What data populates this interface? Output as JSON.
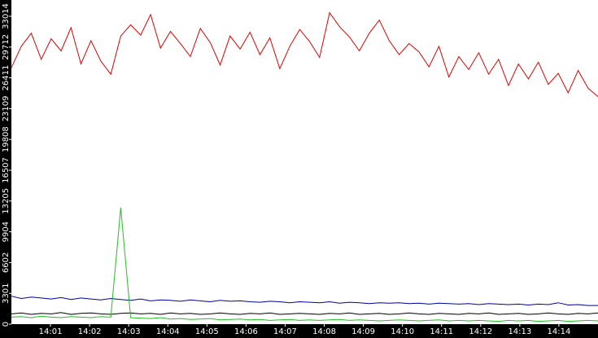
{
  "chart_data": {
    "type": "line",
    "xlim": [
      0,
      15
    ],
    "xticks": [
      {
        "value": 1,
        "label": "14:01"
      },
      {
        "value": 2,
        "label": "14:02"
      },
      {
        "value": 3,
        "label": "14:03"
      },
      {
        "value": 4,
        "label": "14:04"
      },
      {
        "value": 5,
        "label": "14:05"
      },
      {
        "value": 6,
        "label": "14:06"
      },
      {
        "value": 7,
        "label": "14:07"
      },
      {
        "value": 8,
        "label": "14:08"
      },
      {
        "value": 9,
        "label": "14:09"
      },
      {
        "value": 10,
        "label": "14:10"
      },
      {
        "value": 11,
        "label": "14:11"
      },
      {
        "value": 12,
        "label": "14:12"
      },
      {
        "value": 13,
        "label": "14:13"
      },
      {
        "value": 14,
        "label": "14:14"
      }
    ],
    "ylim": [
      0,
      34760
    ],
    "yticks": [
      0,
      3301,
      6602,
      9904,
      13205,
      16507,
      19808,
      23109,
      26411,
      29712,
      33014
    ],
    "series": [
      {
        "color": "#e00000",
        "values": [
          27500,
          29800,
          31200,
          28400,
          30600,
          29300,
          31800,
          27900,
          30400,
          28200,
          26800,
          30900,
          32100,
          31000,
          33200,
          29600,
          31400,
          30100,
          28700,
          31700,
          30200,
          27800,
          30900,
          29500,
          31300,
          28900,
          30700,
          27400,
          29800,
          31600,
          30300,
          28600,
          33400,
          31900,
          30800,
          29300,
          31200,
          32600,
          30400,
          28900,
          30100,
          29200,
          27600,
          29800,
          26500,
          28700,
          27300,
          29100,
          26800,
          28400,
          25600,
          27900,
          26300,
          28100,
          25700,
          26900,
          24800,
          27200,
          25300,
          24400
        ]
      },
      {
        "color": "#0000a0",
        "values": [
          3000,
          2750,
          2900,
          2800,
          2700,
          2850,
          2650,
          2800,
          2700,
          2600,
          2750,
          2650,
          2550,
          2700,
          2500,
          2600,
          2550,
          2450,
          2600,
          2500,
          2400,
          2550,
          2450,
          2500,
          2400,
          2350,
          2450,
          2400,
          2300,
          2400,
          2350,
          2300,
          2400,
          2250,
          2350,
          2300,
          2200,
          2300,
          2250,
          2300,
          2200,
          2250,
          2150,
          2250,
          2200,
          2150,
          2200,
          2100,
          2200,
          2150,
          2100,
          2150,
          2050,
          2150,
          2100,
          2300,
          2050,
          2100,
          2000,
          2000
        ]
      },
      {
        "color": "#000000",
        "values": [
          1100,
          1200,
          1050,
          1150,
          1100,
          1250,
          1050,
          1150,
          1200,
          1100,
          1050,
          1150,
          1200,
          1100,
          1150,
          1050,
          1200,
          1100,
          1150,
          1050,
          1100,
          1200,
          1100,
          1050,
          1150,
          1100,
          1200,
          1050,
          1100,
          1150,
          1100,
          1050,
          1150,
          1100,
          1200,
          1050,
          1100,
          1150,
          1050,
          1100,
          1200,
          1100,
          1050,
          1150,
          1100,
          1050,
          1150,
          1100,
          1200,
          1050,
          1100,
          1150,
          1050,
          1100,
          1200,
          1100,
          1050,
          1150,
          1100,
          1200
        ]
      },
      {
        "color": "#20c020",
        "values": [
          750,
          800,
          700,
          850,
          750,
          700,
          800,
          750,
          700,
          800,
          750,
          12500,
          700,
          650,
          600,
          700,
          550,
          600,
          500,
          550,
          600,
          450,
          500,
          550,
          450,
          500,
          400,
          450,
          500,
          400,
          450,
          400,
          450,
          500,
          400,
          450,
          400,
          350,
          400,
          450,
          400,
          350,
          400,
          450,
          350,
          400,
          350,
          400,
          350,
          300,
          400,
          350,
          400,
          300,
          350,
          400,
          300,
          350,
          400,
          350
        ]
      }
    ]
  }
}
